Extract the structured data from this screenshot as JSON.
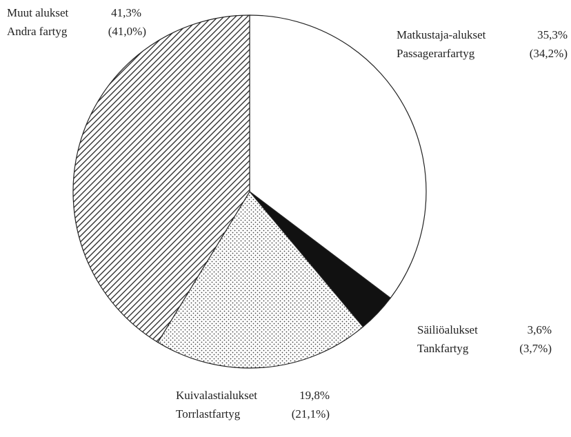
{
  "chart_data": {
    "type": "pie",
    "categories": [
      "Matkustaja-alukset",
      "Säiliöalukset",
      "Kuivalastialukset",
      "Muut alukset"
    ],
    "values": [
      35.3,
      3.6,
      19.8,
      41.3
    ],
    "value_labels": [
      "35,3%",
      "3,6%",
      "19,8%",
      "41,3%"
    ],
    "alt_categories": [
      "Passagerarfartyg",
      "Tankfartyg",
      "Torrlastfartyg",
      "Andra fartyg"
    ],
    "alt_values": [
      34.2,
      3.7,
      21.1,
      41.0
    ],
    "alt_value_labels": [
      "(34,2%)",
      "(3,7%)",
      "(21,1%)",
      "(41,0%)"
    ]
  }
}
